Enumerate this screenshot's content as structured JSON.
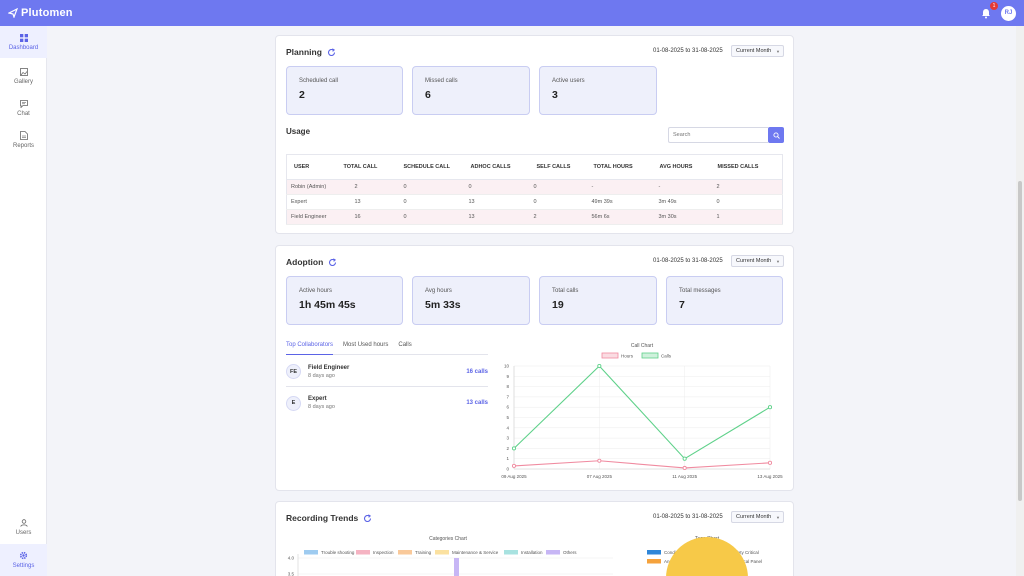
{
  "app": {
    "name": "Plutomen",
    "notification_count": "1",
    "user_initials": "RJ"
  },
  "sidebar": {
    "top_items": [
      {
        "label": "Dashboard",
        "icon": "grid-icon",
        "active": true
      },
      {
        "label": "Gallery",
        "icon": "image-icon",
        "active": false
      },
      {
        "label": "Chat",
        "icon": "chat-icon",
        "active": false
      },
      {
        "label": "Reports",
        "icon": "document-icon",
        "active": false
      }
    ],
    "bottom_items": [
      {
        "label": "Users",
        "icon": "user-icon",
        "active": false
      },
      {
        "label": "Settings",
        "icon": "gear-icon",
        "active": true
      }
    ]
  },
  "planning": {
    "title": "Planning",
    "date_range": "01-08-2025 to 31-08-2025",
    "period": "Current Month",
    "stats": [
      {
        "label": "Scheduled call",
        "value": "2"
      },
      {
        "label": "Missed calls",
        "value": "6"
      },
      {
        "label": "Active users",
        "value": "3"
      }
    ],
    "usage": {
      "title": "Usage",
      "search_placeholder": "Search",
      "columns": [
        "USER",
        "TOTAL CALL",
        "SCHEDULE CALL",
        "ADHOC CALLS",
        "SELF CALLS",
        "TOTAL HOURS",
        "AVG HOURS",
        "MISSED CALLS"
      ],
      "rows": [
        [
          "Robin (Admin)",
          "2",
          "0",
          "0",
          "0",
          "-",
          "-",
          "2"
        ],
        [
          "Expert",
          "13",
          "0",
          "13",
          "0",
          "49m 39s",
          "3m 49s",
          "0"
        ],
        [
          "Field Engineer",
          "16",
          "0",
          "13",
          "2",
          "56m 6s",
          "3m 30s",
          "1"
        ]
      ]
    }
  },
  "adoption": {
    "title": "Adoption",
    "date_range": "01-08-2025 to 31-08-2025",
    "period": "Current Month",
    "stats": [
      {
        "label": "Active hours",
        "value": "1h 45m 45s"
      },
      {
        "label": "Avg hours",
        "value": "5m 33s"
      },
      {
        "label": "Total calls",
        "value": "19"
      },
      {
        "label": "Total messages",
        "value": "7"
      }
    ],
    "tabs": [
      "Top Collaborators",
      "Most Used hours",
      "Calls"
    ],
    "active_tab": "Top Collaborators",
    "collaborators": [
      {
        "initials": "FE",
        "name": "Field Engineer",
        "time": "8 days ago",
        "count": "16 calls"
      },
      {
        "initials": "E",
        "name": "Expert",
        "time": "8 days ago",
        "count": "13 calls"
      }
    ]
  },
  "recording": {
    "title": "Recording Trends",
    "date_range": "01-08-2025 to 31-08-2025",
    "period": "Current Month",
    "categories_chart_title": "Categories Chart",
    "tags_chart_title": "Tags Chart"
  },
  "chart_data": [
    {
      "type": "line",
      "title": "Call Chart",
      "x": [
        "09 Aug 2025",
        "07 Aug 2025",
        "11 Aug 2025",
        "13 Aug 2025"
      ],
      "series": [
        {
          "name": "Hours",
          "values": [
            0.3,
            0.8,
            0.1,
            0.6
          ],
          "color": "#f08ba0"
        },
        {
          "name": "Calls",
          "values": [
            2,
            10,
            1,
            6
          ],
          "color": "#5fd18a"
        }
      ],
      "ylim": [
        0,
        10
      ],
      "yticks": [
        "0",
        "1",
        "2",
        "3",
        "4",
        "5",
        "6",
        "7",
        "8",
        "9",
        "10"
      ],
      "grid": true,
      "legend": "top"
    },
    {
      "type": "bar",
      "title": "Categories Chart",
      "legend": [
        {
          "name": "Trouble shooting",
          "color": "#9ecbf0"
        },
        {
          "name": "Inspection",
          "color": "#f5b3c2"
        },
        {
          "name": "Training",
          "color": "#f9c99a"
        },
        {
          "name": "Maintenance & Service",
          "color": "#fbe1a0"
        },
        {
          "name": "Installation",
          "color": "#a8e2e0"
        },
        {
          "name": "Others",
          "color": "#c7b6f5"
        }
      ],
      "yticks": [
        "4.0",
        "3.5"
      ]
    },
    {
      "type": "pie",
      "title": "Tags Chart",
      "legend": [
        {
          "name": "Condition Monitoring",
          "color": "#2f86d8"
        },
        {
          "name": "Safety Critical",
          "color": "#e8546c"
        },
        {
          "name": "Annual Maintenance",
          "color": "#f5a23c"
        },
        {
          "name": "Electrical Panel",
          "color": "#f7c948"
        }
      ]
    }
  ]
}
